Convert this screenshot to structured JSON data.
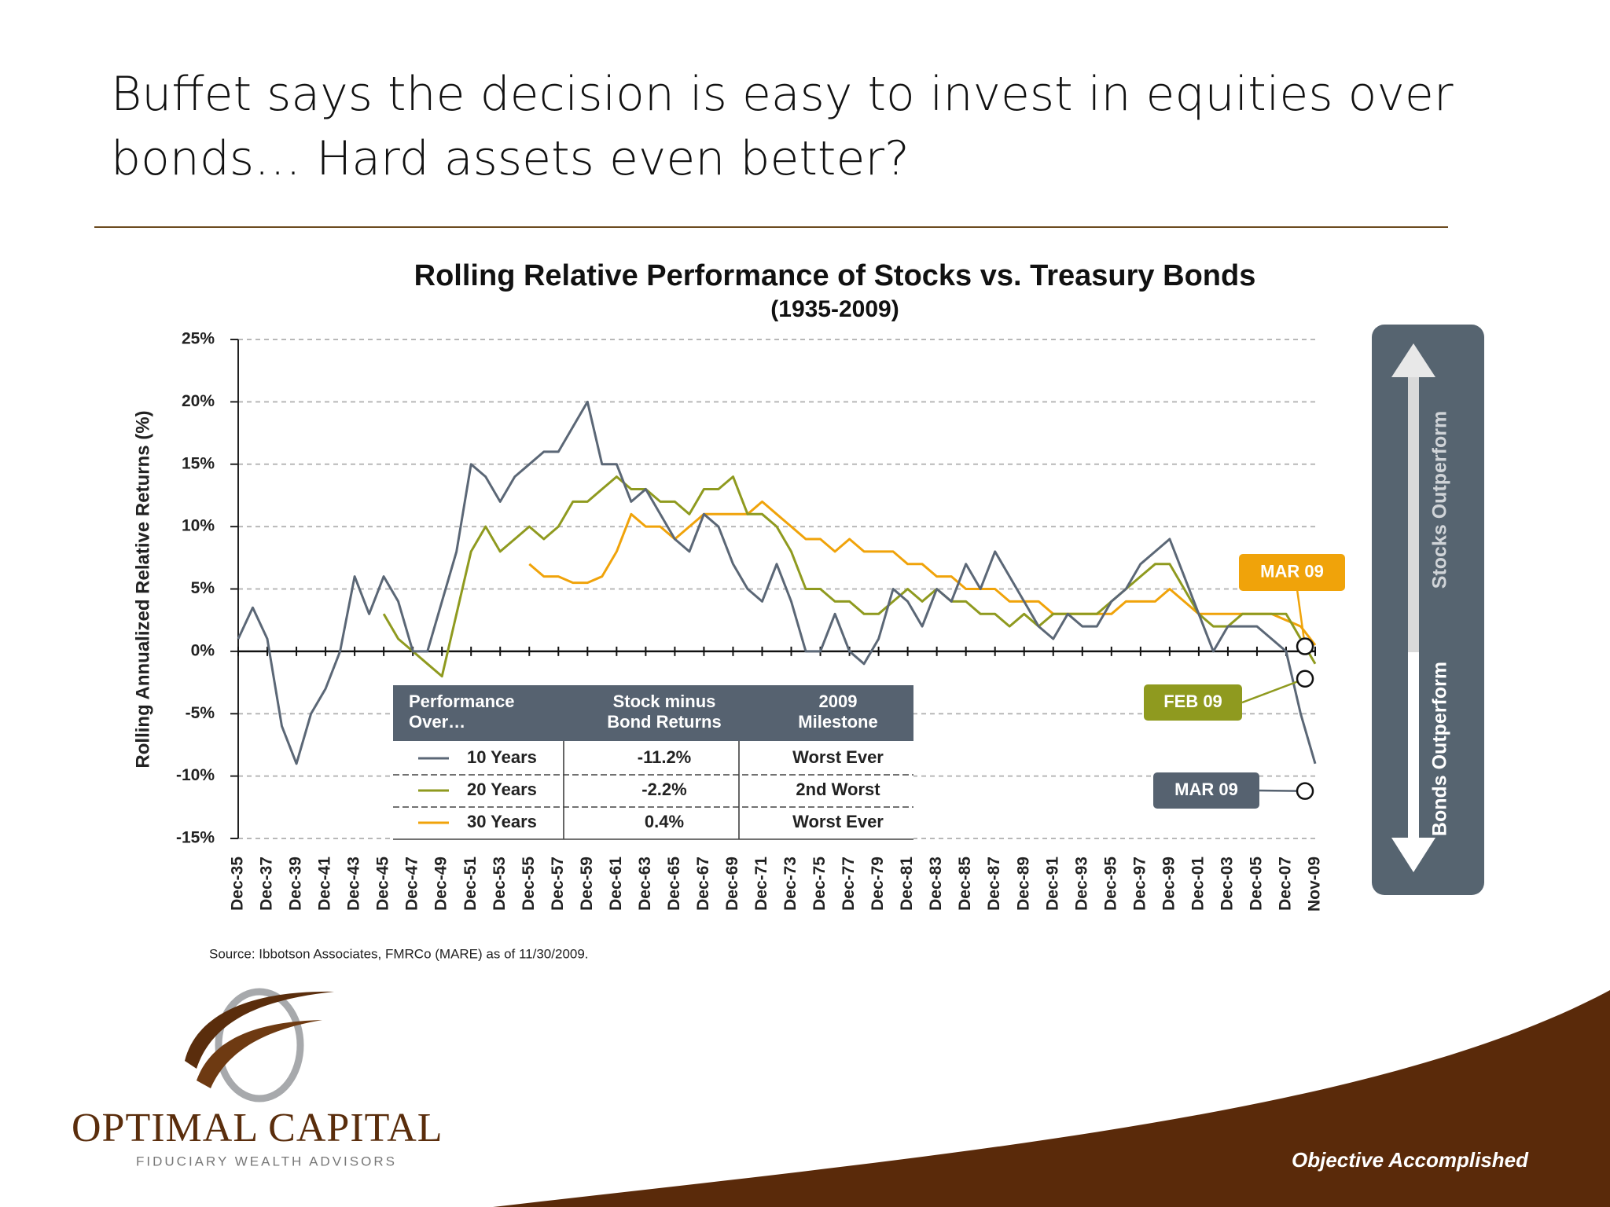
{
  "slide": {
    "title_lines": [
      "Buffet says the decision is easy to invest in equities over",
      "bonds… Hard assets even better?"
    ],
    "logo_name": "OPTIMAL CAPITAL",
    "logo_tagline": "FIDUCIARY WEALTH ADVISORS",
    "footer": "Objective Accomplished"
  },
  "chart_data": {
    "type": "line",
    "title": "Rolling Relative Performance of Stocks vs. Treasury Bonds",
    "subtitle": "(1935-2009)",
    "y_label": "Rolling Annualized Relative Returns (%)",
    "source": "Source: Ibbotson Associates, FMRCo (MARE) as of 11/30/2009.",
    "x": [
      "Dec-35",
      "Dec-36",
      "Dec-37",
      "Dec-38",
      "Dec-39",
      "Dec-40",
      "Dec-41",
      "Dec-42",
      "Dec-43",
      "Dec-44",
      "Dec-45",
      "Dec-46",
      "Dec-47",
      "Dec-48",
      "Dec-49",
      "Dec-50",
      "Dec-51",
      "Dec-52",
      "Dec-53",
      "Dec-54",
      "Dec-55",
      "Dec-56",
      "Dec-57",
      "Dec-58",
      "Dec-59",
      "Dec-60",
      "Dec-61",
      "Dec-62",
      "Dec-63",
      "Dec-64",
      "Dec-65",
      "Dec-66",
      "Dec-67",
      "Dec-68",
      "Dec-69",
      "Dec-70",
      "Dec-71",
      "Dec-72",
      "Dec-73",
      "Dec-74",
      "Dec-75",
      "Dec-76",
      "Dec-77",
      "Dec-78",
      "Dec-79",
      "Dec-80",
      "Dec-81",
      "Dec-82",
      "Dec-83",
      "Dec-84",
      "Dec-85",
      "Dec-86",
      "Dec-87",
      "Dec-88",
      "Dec-89",
      "Dec-90",
      "Dec-91",
      "Dec-92",
      "Dec-93",
      "Dec-94",
      "Dec-95",
      "Dec-96",
      "Dec-97",
      "Dec-98",
      "Dec-99",
      "Dec-00",
      "Dec-01",
      "Dec-02",
      "Dec-03",
      "Dec-04",
      "Dec-05",
      "Dec-06",
      "Dec-07",
      "Dec-08",
      "Nov-09"
    ],
    "xticks": [
      "Dec-35",
      "Dec-37",
      "Dec-39",
      "Dec-41",
      "Dec-43",
      "Dec-45",
      "Dec-47",
      "Dec-49",
      "Dec-51",
      "Dec-53",
      "Dec-55",
      "Dec-57",
      "Dec-59",
      "Dec-61",
      "Dec-63",
      "Dec-65",
      "Dec-67",
      "Dec-69",
      "Dec-71",
      "Dec-73",
      "Dec-75",
      "Dec-77",
      "Dec-79",
      "Dec-81",
      "Dec-83",
      "Dec-85",
      "Dec-87",
      "Dec-89",
      "Dec-91",
      "Dec-93",
      "Dec-95",
      "Dec-97",
      "Dec-99",
      "Dec-01",
      "Dec-03",
      "Dec-05",
      "Dec-07",
      "Nov-09"
    ],
    "ylim": [
      -15,
      25
    ],
    "yticks": [
      {
        "value": 25,
        "label": "25%"
      },
      {
        "value": 20,
        "label": "20%"
      },
      {
        "value": 15,
        "label": "15%"
      },
      {
        "value": 10,
        "label": "10%"
      },
      {
        "value": 5,
        "label": "5%"
      },
      {
        "value": 0,
        "label": "0%"
      },
      {
        "value": -5,
        "label": "-5%"
      },
      {
        "value": -10,
        "label": "-10%"
      },
      {
        "value": -15,
        "label": "-15%"
      }
    ],
    "grid": true,
    "series": [
      {
        "name": "10 Years",
        "color": "#5b6776",
        "values": [
          1,
          3.5,
          1,
          -6,
          -9,
          -5,
          -3,
          0,
          6,
          3,
          6,
          4,
          0,
          0,
          4,
          8,
          15,
          14,
          12,
          14,
          15,
          16,
          16,
          18,
          20,
          15,
          15,
          12,
          13,
          11,
          9,
          8,
          11,
          10,
          7,
          5,
          4,
          7,
          4,
          0,
          0,
          3,
          0,
          -1,
          1,
          5,
          4,
          2,
          5,
          4,
          7,
          5,
          8,
          6,
          4,
          2,
          1,
          3,
          2,
          2,
          4,
          5,
          7,
          8,
          9,
          6,
          3,
          0,
          2,
          2,
          2,
          1,
          0,
          -5,
          -9
        ]
      },
      {
        "name": "20 Years",
        "color": "#8f9a1f",
        "values": [
          null,
          null,
          null,
          null,
          null,
          null,
          null,
          null,
          null,
          null,
          3,
          1,
          0,
          -1,
          -2,
          3,
          8,
          10,
          8,
          9,
          10,
          9,
          10,
          12,
          12,
          13,
          14,
          13,
          13,
          12,
          12,
          11,
          13,
          13,
          14,
          11,
          11,
          10,
          8,
          5,
          5,
          4,
          4,
          3,
          3,
          4,
          5,
          4,
          5,
          4,
          4,
          3,
          3,
          2,
          3,
          2,
          3,
          3,
          3,
          3,
          4,
          5,
          6,
          7,
          7,
          5,
          3,
          2,
          2,
          3,
          3,
          3,
          3,
          1,
          -1
        ]
      },
      {
        "name": "30 Years",
        "color": "#f0a30a",
        "values": [
          null,
          null,
          null,
          null,
          null,
          null,
          null,
          null,
          null,
          null,
          null,
          null,
          null,
          null,
          null,
          null,
          null,
          null,
          null,
          null,
          7,
          6,
          6,
          5.5,
          5.5,
          6,
          8,
          11,
          10,
          10,
          9,
          10,
          11,
          11,
          11,
          11,
          12,
          11,
          10,
          9,
          9,
          8,
          9,
          8,
          8,
          8,
          7,
          7,
          6,
          6,
          5,
          5,
          5,
          4,
          4,
          4,
          3,
          3,
          3,
          3,
          3,
          4,
          4,
          4,
          5,
          4,
          3,
          3,
          3,
          3,
          3,
          3,
          2.5,
          2,
          0.5
        ]
      }
    ],
    "table": {
      "headers": [
        [
          "Performance",
          "Over…"
        ],
        [
          "Stock minus",
          "Bond Returns"
        ],
        [
          "2009",
          "Milestone"
        ]
      ],
      "returns": [
        "-11.2%",
        "-2.2%",
        "0.4%"
      ],
      "milestones": [
        "Worst Ever",
        "2nd Worst",
        "Worst Ever"
      ]
    },
    "annotations": [
      {
        "label": "MAR 09",
        "value": 0.4,
        "color": "#f0a30a"
      },
      {
        "label": "FEB 09",
        "value": -2.2,
        "color": "#8f9a1f"
      },
      {
        "label": "MAR 09",
        "value": -11.2,
        "color": "#566270"
      }
    ],
    "side_panel": {
      "top": "Stocks Outperform",
      "bottom": "Bonds Outperform"
    }
  }
}
